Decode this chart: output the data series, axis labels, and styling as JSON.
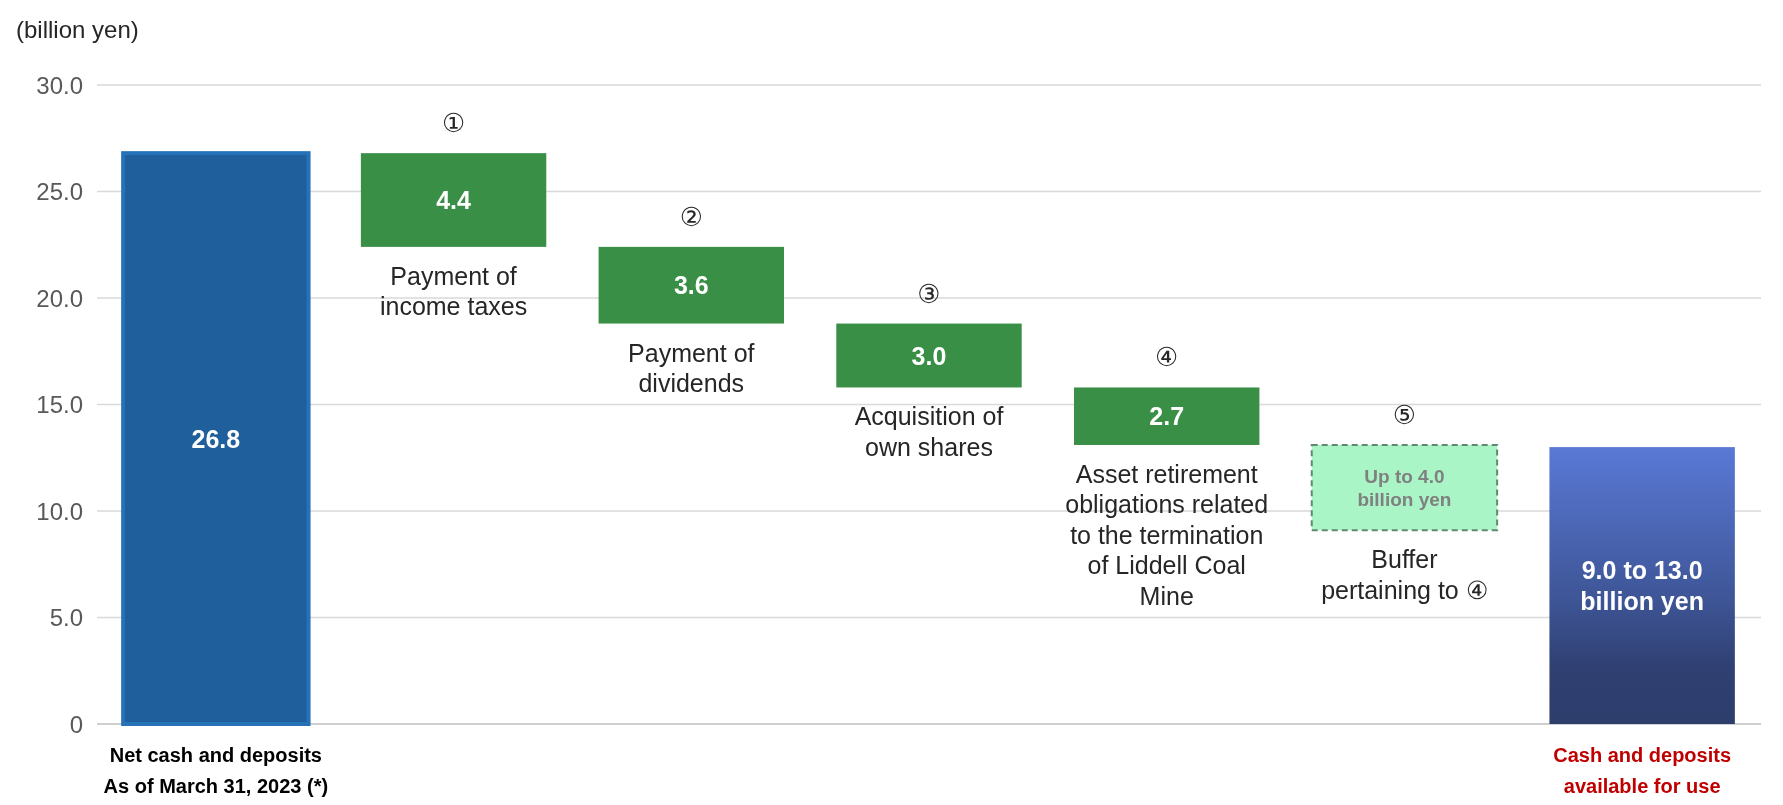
{
  "chart_data": {
    "type": "bar",
    "ylabel": "(billion yen)",
    "categories": [
      "Net cash and deposits\nAs of March 31, 2023 (*)",
      "Payment of\nincome taxes",
      "Payment of\ndividends",
      "Acquisition of\nown shares",
      "Asset retirement\nobligations related\nto the termination\nof Liddell Coal\nMine",
      "Buffer\npertaining to ④",
      "Cash and deposits\navailable for use"
    ],
    "series": [
      {
        "base": [
          0,
          22.4,
          18.8,
          15.8,
          13.1,
          null,
          0
        ],
        "values": [
          26.8,
          4.4,
          3.6,
          3.0,
          2.7,
          null,
          13.0
        ],
        "colors": [
          "#1f5f9b",
          "#3a8f46",
          "#3a8f46",
          "#3a8f46",
          "#3a8f46",
          null,
          "#3e5596"
        ],
        "value_labels": [
          "26.8",
          "4.4",
          "3.6",
          "3.0",
          "2.7",
          null,
          "9.0 to 13.0\nbillion yen"
        ]
      },
      {
        "base": [
          null,
          null,
          null,
          null,
          null,
          9.1,
          null
        ],
        "values": [
          null,
          null,
          null,
          null,
          null,
          4.0,
          null
        ],
        "color": "#a9f5c6",
        "line_style": "dashed",
        "value_labels": [
          null,
          null,
          null,
          null,
          null,
          "Up to 4.0\nbillion yen",
          null
        ]
      }
    ],
    "ylim": [
      0,
      30
    ],
    "yticks": [
      {
        "value": 0,
        "label": "0"
      },
      {
        "value": 5,
        "label": "5.0"
      },
      {
        "value": 10,
        "label": "10.0"
      },
      {
        "value": 15,
        "label": "15.0"
      },
      {
        "value": 20,
        "label": "20.0"
      },
      {
        "value": 25,
        "label": "25.0"
      },
      {
        "value": 30,
        "label": "30.0"
      }
    ],
    "grid": "y",
    "annotations": [
      {
        "text": "①",
        "x": "Payment of\nincome taxes",
        "y": 26.8
      },
      {
        "text": "②",
        "x": "Payment of\ndividends",
        "y": 22.4
      },
      {
        "text": "③",
        "x": "Acquisition of\nown shares",
        "y": 18.8
      },
      {
        "text": "④",
        "x": "Asset retirement\nobligations related\nto the termination\nof Liddell Coal\nMine",
        "y": 15.8
      },
      {
        "text": "⑤",
        "x": "Buffer\npertaining to ④",
        "y": 13.1
      }
    ]
  }
}
